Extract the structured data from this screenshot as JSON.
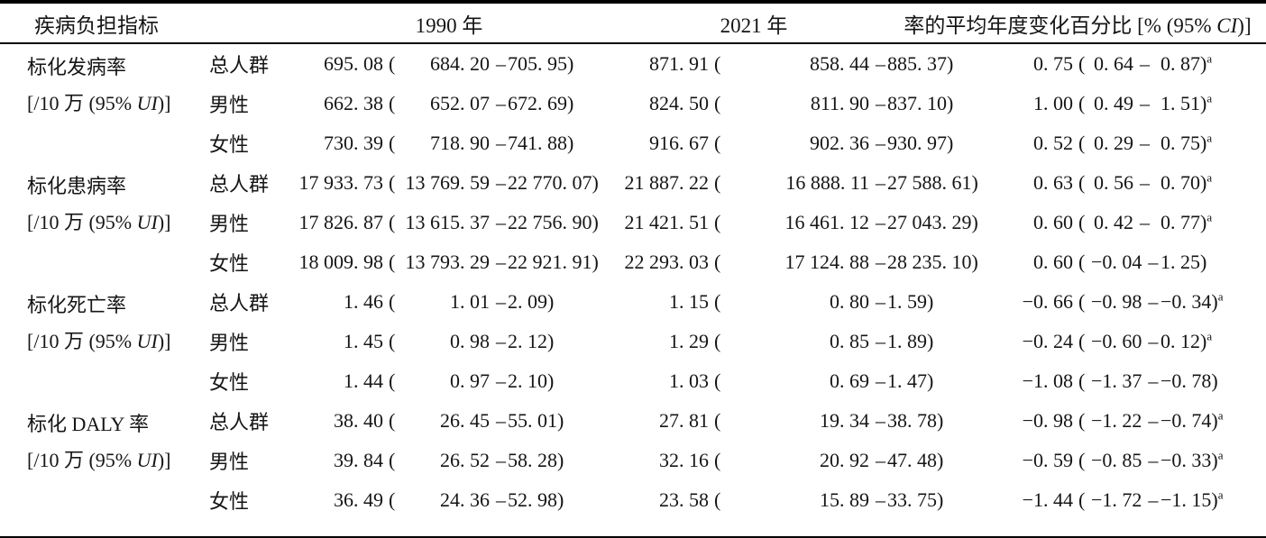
{
  "table": {
    "punct": {
      "open": "(",
      "close": ")",
      "dash": "–"
    },
    "header": {
      "indicator": "疾病负担指标",
      "y1990": "1990 年",
      "y2021": "2021 年",
      "aapc_pre": "率的平均年度变化百分比 [% (95% ",
      "aapc_italic": "CI",
      "aapc_post": ")]"
    },
    "groups": [
      {
        "name": "标化发病率",
        "unit_pre": "[/10 万 (95% ",
        "unit_italic": "UI",
        "unit_post": ")]",
        "rows": [
          {
            "pop": "总人群",
            "y1990": {
              "val": "695. 08",
              "low": "684. 20",
              "high": "705. 95"
            },
            "y2021": {
              "val": "871. 91",
              "low": "858. 44",
              "high": "885. 37"
            },
            "aapc": {
              "val": "0. 75",
              "low": "0. 64",
              "high": "0. 87",
              "sup": "a"
            }
          },
          {
            "pop": "男性",
            "y1990": {
              "val": "662. 38",
              "low": "652. 07",
              "high": "672. 69"
            },
            "y2021": {
              "val": "824. 50",
              "low": "811. 90",
              "high": "837. 10"
            },
            "aapc": {
              "val": "1. 00",
              "low": "0. 49",
              "high": "1. 51",
              "sup": "a"
            }
          },
          {
            "pop": "女性",
            "y1990": {
              "val": "730. 39",
              "low": "718. 90",
              "high": "741. 88"
            },
            "y2021": {
              "val": "916. 67",
              "low": "902. 36",
              "high": "930. 97"
            },
            "aapc": {
              "val": "0. 52",
              "low": "0. 29",
              "high": "0. 75",
              "sup": "a"
            }
          }
        ]
      },
      {
        "name": "标化患病率",
        "unit_pre": "[/10 万 (95% ",
        "unit_italic": "UI",
        "unit_post": ")]",
        "rows": [
          {
            "pop": "总人群",
            "y1990": {
              "val": "17 933. 73",
              "low": "13 769. 59",
              "high": "22 770. 07"
            },
            "y2021": {
              "val": "21 887. 22",
              "low": "16 888. 11",
              "high": "27 588. 61"
            },
            "aapc": {
              "val": "0. 63",
              "low": "0. 56",
              "high": "0. 70",
              "sup": "a"
            }
          },
          {
            "pop": "男性",
            "y1990": {
              "val": "17 826. 87",
              "low": "13 615. 37",
              "high": "22 756. 90"
            },
            "y2021": {
              "val": "21 421. 51",
              "low": "16 461. 12",
              "high": "27 043. 29"
            },
            "aapc": {
              "val": "0. 60",
              "low": "0. 42",
              "high": "0. 77",
              "sup": "a"
            }
          },
          {
            "pop": "女性",
            "y1990": {
              "val": "18 009. 98",
              "low": "13 793. 29",
              "high": "22 921. 91"
            },
            "y2021": {
              "val": "22 293. 03",
              "low": "17 124. 88",
              "high": "28 235. 10"
            },
            "aapc": {
              "val": "0. 60",
              "low": "−0. 04",
              "high": "1. 25",
              "sup": ""
            }
          }
        ]
      },
      {
        "name": "标化死亡率",
        "unit_pre": "[/10 万 (95% ",
        "unit_italic": "UI",
        "unit_post": ")]",
        "rows": [
          {
            "pop": "总人群",
            "y1990": {
              "val": "1. 46",
              "low": "1. 01",
              "high": "2. 09"
            },
            "y2021": {
              "val": "1. 15",
              "low": "0. 80",
              "high": "1. 59"
            },
            "aapc": {
              "val": "−0. 66",
              "low": "−0. 98",
              "high": "−0. 34",
              "sup": "a"
            }
          },
          {
            "pop": "男性",
            "y1990": {
              "val": "1. 45",
              "low": "0. 98",
              "high": "2. 12"
            },
            "y2021": {
              "val": "1. 29",
              "low": "0. 85",
              "high": "1. 89"
            },
            "aapc": {
              "val": "−0. 24",
              "low": "−0. 60",
              "high": "0. 12",
              "sup": "a"
            }
          },
          {
            "pop": "女性",
            "y1990": {
              "val": "1. 44",
              "low": "0. 97",
              "high": "2. 10"
            },
            "y2021": {
              "val": "1. 03",
              "low": "0. 69",
              "high": "1. 47"
            },
            "aapc": {
              "val": "−1. 08",
              "low": "−1. 37",
              "high": "−0. 78",
              "sup": ""
            }
          }
        ]
      },
      {
        "name": "标化 DALY 率",
        "unit_pre": "[/10 万 (95% ",
        "unit_italic": "UI",
        "unit_post": ")]",
        "rows": [
          {
            "pop": "总人群",
            "y1990": {
              "val": "38. 40",
              "low": "26. 45",
              "high": "55. 01"
            },
            "y2021": {
              "val": "27. 81",
              "low": "19. 34",
              "high": "38. 78"
            },
            "aapc": {
              "val": "−0. 98",
              "low": "−1. 22",
              "high": "−0. 74",
              "sup": "a"
            }
          },
          {
            "pop": "男性",
            "y1990": {
              "val": "39. 84",
              "low": "26. 52",
              "high": "58. 28"
            },
            "y2021": {
              "val": "32. 16",
              "low": "20. 92",
              "high": "47. 48"
            },
            "aapc": {
              "val": "−0. 59",
              "low": "−0. 85",
              "high": "−0. 33",
              "sup": "a"
            }
          },
          {
            "pop": "女性",
            "y1990": {
              "val": "36. 49",
              "low": "24. 36",
              "high": "52. 98"
            },
            "y2021": {
              "val": "23. 58",
              "low": "15. 89",
              "high": "33. 75"
            },
            "aapc": {
              "val": "−1. 44",
              "low": "−1. 72",
              "high": "−1. 15",
              "sup": "a"
            }
          }
        ]
      }
    ]
  }
}
